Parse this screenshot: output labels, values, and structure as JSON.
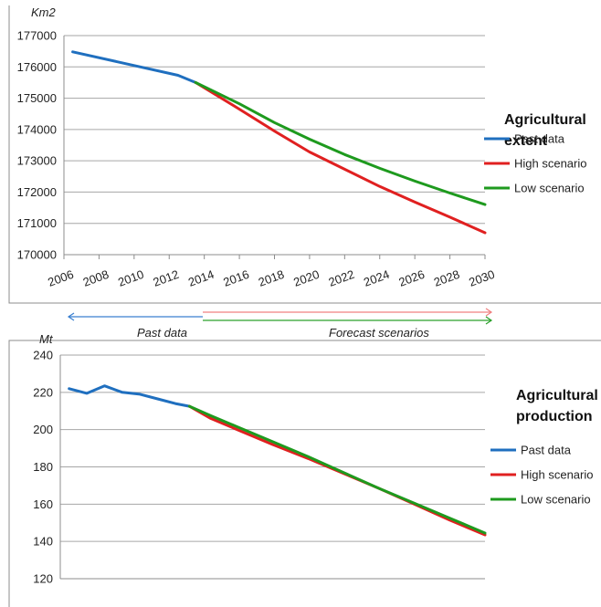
{
  "colors": {
    "past": "#1f6fbf",
    "high": "#e02020",
    "low": "#1e9a1e",
    "high_arrow": "#f08080",
    "low_arrow": "#2aa02a",
    "past_arrow": "#3a7fd0"
  },
  "period_labels": {
    "past": "Past data",
    "forecast": "Forecast scenarios"
  },
  "chart_data": [
    {
      "type": "line",
      "title": "Agricultural extent",
      "title_lines": [
        "Agricultural",
        "extent"
      ],
      "ylabel": "Km2",
      "xlabel": "",
      "xlim": [
        2006,
        2030
      ],
      "ylim": [
        170000,
        177000
      ],
      "yticks": [
        170000,
        171000,
        172000,
        173000,
        174000,
        175000,
        176000,
        177000
      ],
      "xticks": [
        2006,
        2008,
        2010,
        2012,
        2014,
        2016,
        2018,
        2020,
        2022,
        2024,
        2026,
        2028,
        2030
      ],
      "grid": true,
      "legend_position": "right",
      "series": [
        {
          "name": "Past data",
          "color_key": "past",
          "x": [
            2006.5,
            2012.5,
            2013.5
          ],
          "y": [
            176480,
            175730,
            175500
          ]
        },
        {
          "name": "High scenario",
          "color_key": "high",
          "x": [
            2013.5,
            2016,
            2018,
            2020,
            2022,
            2024,
            2026,
            2028,
            2030
          ],
          "y": [
            175500,
            174650,
            173950,
            173280,
            172730,
            172180,
            171680,
            171200,
            170700
          ]
        },
        {
          "name": "Low scenario",
          "color_key": "low",
          "x": [
            2013.5,
            2016,
            2018,
            2020,
            2022,
            2024,
            2026,
            2028,
            2030
          ],
          "y": [
            175500,
            174820,
            174220,
            173690,
            173200,
            172760,
            172350,
            171970,
            171600
          ]
        }
      ]
    },
    {
      "type": "line",
      "title": "Agricultural production",
      "title_lines": [
        "Agricultural",
        "production"
      ],
      "ylabel": "Mt",
      "xlabel": "",
      "xlim": [
        2006,
        2030
      ],
      "ylim": [
        120,
        240
      ],
      "yticks": [
        120,
        140,
        160,
        180,
        200,
        220,
        240
      ],
      "xticks": [],
      "grid": true,
      "legend_position": "right",
      "series": [
        {
          "name": "Past data",
          "color_key": "past",
          "x": [
            2006.5,
            2007.5,
            2008.5,
            2009.5,
            2010.5,
            2011.5,
            2012.5,
            2013.3
          ],
          "y": [
            222,
            219.5,
            223.5,
            220,
            219,
            216.5,
            214,
            212.5
          ]
        },
        {
          "name": "High scenario",
          "color_key": "high",
          "x": [
            2013.3,
            2014.5,
            2016,
            2018,
            2020,
            2022,
            2024,
            2026,
            2028,
            2030
          ],
          "y": [
            212.5,
            206,
            200,
            192,
            184.5,
            176.5,
            168.5,
            160,
            151.5,
            143.5
          ]
        },
        {
          "name": "Low scenario",
          "color_key": "low",
          "x": [
            2013.3,
            2014.5,
            2016,
            2018,
            2020,
            2022,
            2024,
            2026,
            2028,
            2030
          ],
          "y": [
            212.5,
            207.5,
            201.5,
            193.5,
            185.5,
            177,
            168.5,
            160.5,
            152.5,
            144.5
          ]
        }
      ]
    }
  ]
}
